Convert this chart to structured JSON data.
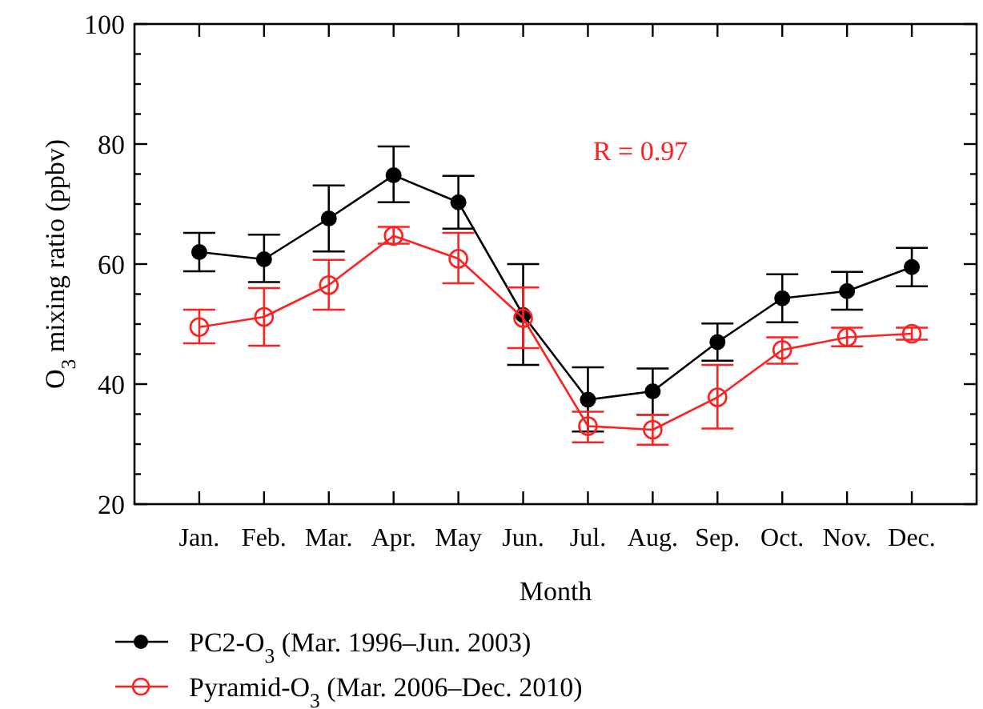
{
  "chart_data": {
    "type": "line",
    "xlabel": "Month",
    "ylabel": "O$_{3}$ mixing ratio (ppbv)",
    "categories": [
      "Jan.",
      "Feb.",
      "Mar.",
      "Apr.",
      "May",
      "Jun.",
      "Jul.",
      "Aug.",
      "Sep.",
      "Oct.",
      "Nov.",
      "Dec."
    ],
    "series": [
      {
        "name": "PC2-O$_{3}$ (Mar. 1996–Jun. 2003)",
        "color": "#000000",
        "marker": "circle",
        "values": [
          62.0,
          60.8,
          67.6,
          74.8,
          70.3,
          51.5,
          37.4,
          38.8,
          47.0,
          54.3,
          55.5,
          59.5
        ],
        "errors": [
          [
            58.8,
            65.2
          ],
          [
            57.0,
            64.9
          ],
          [
            62.1,
            73.1
          ],
          [
            70.3,
            79.6
          ],
          [
            65.9,
            74.7
          ],
          [
            43.2,
            60.0
          ],
          [
            32.1,
            42.8
          ],
          [
            34.9,
            42.6
          ],
          [
            43.9,
            50.1
          ],
          [
            50.3,
            58.3
          ],
          [
            52.4,
            58.7
          ],
          [
            56.3,
            62.7
          ]
        ]
      },
      {
        "name": "Pyramid-O$_{3}$ (Mar. 2006–Dec. 2010)",
        "color": "#ff2020",
        "marker": "open_circle",
        "values": [
          49.5,
          51.2,
          56.5,
          64.7,
          60.9,
          51.0,
          33.0,
          32.4,
          37.8,
          45.7,
          47.8,
          48.4
        ],
        "errors": [
          [
            46.8,
            52.4
          ],
          [
            46.4,
            56.0
          ],
          [
            52.4,
            60.7
          ],
          [
            63.4,
            66.2
          ],
          [
            56.8,
            65.2
          ],
          [
            46.0,
            56.1
          ],
          [
            30.3,
            35.4
          ],
          [
            29.9,
            34.9
          ],
          [
            32.6,
            43.2
          ],
          [
            43.4,
            47.8
          ],
          [
            46.3,
            49.4
          ],
          [
            47.4,
            49.4
          ]
        ]
      }
    ],
    "ylim": [
      20,
      100
    ],
    "yticks": [
      20,
      {
        "value": 25,
        "label": null
      },
      {
        "value": 30,
        "label": null
      },
      {
        "value": 35,
        "label": null
      },
      40,
      {
        "value": 45,
        "label": null
      },
      {
        "value": 50,
        "label": null
      },
      {
        "value": 55,
        "label": null
      },
      60,
      {
        "value": 65,
        "label": null
      },
      {
        "value": 70,
        "label": null
      },
      {
        "value": 75,
        "label": null
      },
      80,
      {
        "value": 85,
        "label": null
      },
      {
        "value": 90,
        "label": null
      },
      {
        "value": 95,
        "label": null
      },
      100
    ],
    "annotations": [
      "R = 0.97"
    ],
    "legend": "bottom",
    "grid": false,
    "line_style": "solid"
  }
}
